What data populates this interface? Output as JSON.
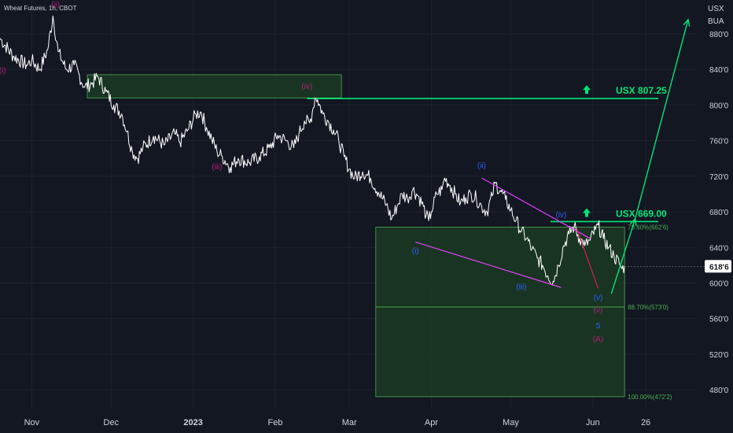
{
  "chart_data": {
    "type": "line",
    "title": "Wheat Futures, 1h, CBOT",
    "currency_top": "USX",
    "currency_bottom": "BUA",
    "current_price_label": "618'6",
    "current_price": 618.75,
    "y_ticks": [
      {
        "value": 880,
        "label": "880'0"
      },
      {
        "value": 840,
        "label": "840'0"
      },
      {
        "value": 800,
        "label": "800'0"
      },
      {
        "value": 760,
        "label": "760'0"
      },
      {
        "value": 720,
        "label": "720'0"
      },
      {
        "value": 680,
        "label": "680'0"
      },
      {
        "value": 640,
        "label": "640'0"
      },
      {
        "value": 600,
        "label": "600'0"
      },
      {
        "value": 560,
        "label": "560'0"
      },
      {
        "value": 520,
        "label": "520'0"
      },
      {
        "value": 480,
        "label": "480'0"
      }
    ],
    "x_ticks": [
      {
        "t": 2,
        "label": "Nov",
        "bold": false
      },
      {
        "t": 32,
        "label": "Dec",
        "bold": false
      },
      {
        "t": 63,
        "label": "2023",
        "bold": true
      },
      {
        "t": 94,
        "label": "Feb",
        "bold": false
      },
      {
        "t": 122,
        "label": "Mar",
        "bold": false
      },
      {
        "t": 153,
        "label": "Apr",
        "bold": false
      },
      {
        "t": 183,
        "label": "May",
        "bold": false
      },
      {
        "t": 214,
        "label": "Jun",
        "bold": false
      },
      {
        "t": 234,
        "label": "26",
        "bold": false
      }
    ],
    "ylim": [
      458,
      918
    ],
    "xlim": [
      -10,
      253
    ],
    "price_path": [
      [
        -10,
        875
      ],
      [
        -5,
        855
      ],
      [
        0,
        845
      ],
      [
        2,
        850
      ],
      [
        5,
        840
      ],
      [
        8,
        862
      ],
      [
        10,
        900
      ],
      [
        12,
        860
      ],
      [
        15,
        840
      ],
      [
        18,
        845
      ],
      [
        22,
        820
      ],
      [
        25,
        825
      ],
      [
        27,
        832
      ],
      [
        30,
        815
      ],
      [
        33,
        800
      ],
      [
        36,
        790
      ],
      [
        38,
        770
      ],
      [
        40,
        748
      ],
      [
        42,
        740
      ],
      [
        44,
        752
      ],
      [
        48,
        765
      ],
      [
        52,
        755
      ],
      [
        56,
        768
      ],
      [
        58,
        758
      ],
      [
        61,
        772
      ],
      [
        64,
        790
      ],
      [
        66,
        792
      ],
      [
        68,
        775
      ],
      [
        70,
        762
      ],
      [
        72,
        748
      ],
      [
        74,
        742
      ],
      [
        77,
        730
      ],
      [
        80,
        740
      ],
      [
        84,
        735
      ],
      [
        88,
        742
      ],
      [
        92,
        752
      ],
      [
        95,
        766
      ],
      [
        98,
        760
      ],
      [
        101,
        752
      ],
      [
        103,
        768
      ],
      [
        105,
        782
      ],
      [
        107,
        780
      ],
      [
        108,
        792
      ],
      [
        109,
        808
      ],
      [
        110,
        806
      ],
      [
        112,
        790
      ],
      [
        114,
        782
      ],
      [
        116,
        772
      ],
      [
        118,
        760
      ],
      [
        120,
        742
      ],
      [
        122,
        728
      ],
      [
        124,
        718
      ],
      [
        127,
        725
      ],
      [
        130,
        718
      ],
      [
        133,
        702
      ],
      [
        136,
        688
      ],
      [
        138,
        672
      ],
      [
        140,
        686
      ],
      [
        142,
        700
      ],
      [
        144,
        695
      ],
      [
        146,
        705
      ],
      [
        148,
        698
      ],
      [
        150,
        686
      ],
      [
        151,
        676
      ],
      [
        152,
        670
      ],
      [
        153,
        680
      ],
      [
        155,
        700
      ],
      [
        157,
        705
      ],
      [
        158,
        718
      ],
      [
        160,
        710
      ],
      [
        162,
        700
      ],
      [
        164,
        690
      ],
      [
        166,
        696
      ],
      [
        168,
        700
      ],
      [
        170,
        695
      ],
      [
        172,
        686
      ],
      [
        174,
        680
      ],
      [
        176,
        698
      ],
      [
        177,
        712
      ],
      [
        179,
        704
      ],
      [
        181,
        694
      ],
      [
        183,
        682
      ],
      [
        185,
        670
      ],
      [
        187,
        658
      ],
      [
        189,
        650
      ],
      [
        191,
        638
      ],
      [
        193,
        628
      ],
      [
        195,
        620
      ],
      [
        197,
        608
      ],
      [
        199,
        602
      ],
      [
        201,
        620
      ],
      [
        203,
        642
      ],
      [
        205,
        655
      ],
      [
        207,
        664
      ],
      [
        209,
        650
      ],
      [
        211,
        642
      ],
      [
        213,
        648
      ],
      [
        215,
        660
      ],
      [
        216,
        665
      ],
      [
        218,
        650
      ],
      [
        220,
        640
      ],
      [
        222,
        630
      ],
      [
        224,
        622
      ],
      [
        225,
        616
      ],
      [
        226,
        618.75
      ]
    ],
    "zones": [
      {
        "t1": 23,
        "t2": 119,
        "y1": 834,
        "y2": 808
      },
      {
        "t1": 132,
        "t2": 226,
        "y1": 662.75,
        "y2": 573
      },
      {
        "t1": 132,
        "t2": 226,
        "y1": 573,
        "y2": 472.25
      }
    ],
    "fib_levels": [
      {
        "value": 662.75,
        "label": "78.60%(662'6)"
      },
      {
        "value": 573,
        "label": "88.70%(573'0)"
      },
      {
        "value": 472.25,
        "label": "100.00%(472'2)"
      }
    ],
    "targets": [
      {
        "value": 807.25,
        "label": "USX 807.25",
        "t_start": 106
      },
      {
        "value": 669,
        "label": "USX 669.00",
        "t_start": 198
      }
    ],
    "projection": [
      [
        221,
        588
      ],
      [
        230,
        672
      ],
      [
        250,
        896
      ]
    ],
    "channel_pink": [
      {
        "from": [
          172,
          718
        ],
        "to": [
          213,
          650
        ]
      },
      {
        "from": [
          147,
          646
        ],
        "to": [
          202,
          595
        ]
      }
    ],
    "red_leg": [
      [
        208,
        661
      ],
      [
        216,
        594
      ]
    ],
    "wave_labels": [
      {
        "t": -9,
        "y": 836,
        "text": "(i)",
        "color": "#b2207a"
      },
      {
        "t": 11,
        "y": 910,
        "text": "(ii)",
        "color": "#b2207a"
      },
      {
        "t": 72,
        "y": 728,
        "text": "(iii)",
        "color": "#b2207a"
      },
      {
        "t": 106,
        "y": 818,
        "text": "(iv)",
        "color": "#b2207a"
      },
      {
        "t": 216,
        "y": 567,
        "text": "(v)",
        "color": "#b2207a"
      },
      {
        "t": 216,
        "y": 534,
        "text": "(A)",
        "color": "#b2207a"
      },
      {
        "t": 147,
        "y": 633,
        "text": "(i)",
        "color": "#2962ff"
      },
      {
        "t": 172,
        "y": 729,
        "text": "(ii)",
        "color": "#2962ff"
      },
      {
        "t": 187,
        "y": 593,
        "text": "(iii)",
        "color": "#2962ff"
      },
      {
        "t": 202,
        "y": 674,
        "text": "(iv)",
        "color": "#2962ff"
      },
      {
        "t": 216,
        "y": 581,
        "text": "(v)",
        "color": "#2962ff"
      },
      {
        "t": 216,
        "y": 549,
        "text": "5",
        "color": "#2962ff"
      }
    ],
    "colors": {
      "background": "#131722",
      "price": "#ffffff",
      "zone_fill": "#1b3a22",
      "zone_border": "#4caf50",
      "target_line": "#00e676",
      "projection": "#00e676",
      "channel": "#e040fb",
      "red_leg": "#d81b60",
      "grid": "#1e222d",
      "price_tag": "#ffffff"
    }
  }
}
